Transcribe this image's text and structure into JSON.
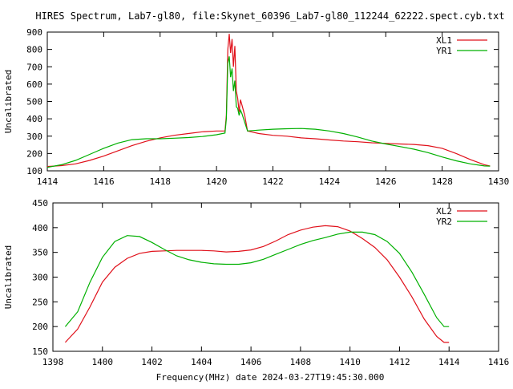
{
  "title": "HIRES Spectrum, Lab7-gl80, file:Skynet_60396_Lab7-gl80_112244_62222.spect.cyb.txt",
  "footer": "Frequency(MHz) date 2024-03-27T19:45:30.000",
  "chart_data": [
    {
      "type": "line",
      "ylabel": "Uncalibrated",
      "xlim": [
        1414,
        1430
      ],
      "ylim": [
        100,
        900
      ],
      "xticks": [
        1414,
        1416,
        1418,
        1420,
        1422,
        1424,
        1426,
        1428,
        1430
      ],
      "yticks": [
        100,
        200,
        300,
        400,
        500,
        600,
        700,
        800,
        900
      ],
      "grid": false,
      "legend_position": "top-right",
      "series": [
        {
          "name": "XL1",
          "color": "#e0101a",
          "points": [
            [
              1414.0,
              125
            ],
            [
              1414.5,
              130
            ],
            [
              1415.0,
              140
            ],
            [
              1415.5,
              160
            ],
            [
              1416.0,
              185
            ],
            [
              1416.5,
              215
            ],
            [
              1417.0,
              245
            ],
            [
              1417.5,
              270
            ],
            [
              1418.0,
              290
            ],
            [
              1418.5,
              305
            ],
            [
              1419.0,
              315
            ],
            [
              1419.5,
              325
            ],
            [
              1420.0,
              330
            ],
            [
              1420.3,
              330
            ],
            [
              1420.35,
              420
            ],
            [
              1420.4,
              800
            ],
            [
              1420.45,
              890
            ],
            [
              1420.5,
              780
            ],
            [
              1420.55,
              860
            ],
            [
              1420.6,
              700
            ],
            [
              1420.65,
              820
            ],
            [
              1420.7,
              560
            ],
            [
              1420.75,
              520
            ],
            [
              1420.8,
              440
            ],
            [
              1420.85,
              510
            ],
            [
              1420.9,
              480
            ],
            [
              1421.0,
              420
            ],
            [
              1421.1,
              330
            ],
            [
              1421.5,
              315
            ],
            [
              1422.0,
              305
            ],
            [
              1422.5,
              300
            ],
            [
              1423.0,
              290
            ],
            [
              1423.5,
              285
            ],
            [
              1424.0,
              278
            ],
            [
              1424.5,
              272
            ],
            [
              1425.0,
              268
            ],
            [
              1425.5,
              262
            ],
            [
              1426.0,
              258
            ],
            [
              1426.5,
              255
            ],
            [
              1427.0,
              252
            ],
            [
              1427.5,
              245
            ],
            [
              1428.0,
              230
            ],
            [
              1428.5,
              200
            ],
            [
              1429.0,
              165
            ],
            [
              1429.5,
              135
            ],
            [
              1429.7,
              128
            ]
          ]
        },
        {
          "name": "YR1",
          "color": "#00b000",
          "points": [
            [
              1414.0,
              120
            ],
            [
              1414.5,
              135
            ],
            [
              1415.0,
              160
            ],
            [
              1415.5,
              195
            ],
            [
              1416.0,
              230
            ],
            [
              1416.5,
              260
            ],
            [
              1417.0,
              280
            ],
            [
              1417.5,
              285
            ],
            [
              1418.0,
              285
            ],
            [
              1418.5,
              288
            ],
            [
              1419.0,
              292
            ],
            [
              1419.5,
              298
            ],
            [
              1420.0,
              308
            ],
            [
              1420.3,
              318
            ],
            [
              1420.35,
              400
            ],
            [
              1420.4,
              720
            ],
            [
              1420.45,
              760
            ],
            [
              1420.5,
              640
            ],
            [
              1420.55,
              690
            ],
            [
              1420.6,
              560
            ],
            [
              1420.65,
              620
            ],
            [
              1420.7,
              470
            ],
            [
              1420.75,
              460
            ],
            [
              1420.8,
              420
            ],
            [
              1420.85,
              450
            ],
            [
              1420.9,
              430
            ],
            [
              1421.0,
              380
            ],
            [
              1421.1,
              330
            ],
            [
              1421.5,
              335
            ],
            [
              1422.0,
              340
            ],
            [
              1422.5,
              343
            ],
            [
              1423.0,
              344
            ],
            [
              1423.5,
              340
            ],
            [
              1424.0,
              330
            ],
            [
              1424.5,
              315
            ],
            [
              1425.0,
              295
            ],
            [
              1425.5,
              272
            ],
            [
              1426.0,
              255
            ],
            [
              1426.5,
              240
            ],
            [
              1427.0,
              225
            ],
            [
              1427.5,
              205
            ],
            [
              1428.0,
              180
            ],
            [
              1428.5,
              158
            ],
            [
              1429.0,
              140
            ],
            [
              1429.5,
              128
            ],
            [
              1429.7,
              127
            ]
          ]
        }
      ]
    },
    {
      "type": "line",
      "ylabel": "Uncalibrated",
      "xlim": [
        1398,
        1416
      ],
      "ylim": [
        150,
        450
      ],
      "xticks": [
        1398,
        1400,
        1402,
        1404,
        1406,
        1408,
        1410,
        1412,
        1414,
        1416
      ],
      "yticks": [
        150,
        200,
        250,
        300,
        350,
        400,
        450
      ],
      "grid": false,
      "legend_position": "top-right",
      "series": [
        {
          "name": "XL2",
          "color": "#e0101a",
          "points": [
            [
              1398.5,
              168
            ],
            [
              1399.0,
              195
            ],
            [
              1399.5,
              240
            ],
            [
              1400.0,
              290
            ],
            [
              1400.5,
              320
            ],
            [
              1401.0,
              338
            ],
            [
              1401.5,
              348
            ],
            [
              1402.0,
              352
            ],
            [
              1402.5,
              353
            ],
            [
              1403.0,
              354
            ],
            [
              1403.5,
              354
            ],
            [
              1404.0,
              354
            ],
            [
              1404.5,
              353
            ],
            [
              1405.0,
              351
            ],
            [
              1405.5,
              352
            ],
            [
              1406.0,
              355
            ],
            [
              1406.5,
              362
            ],
            [
              1407.0,
              373
            ],
            [
              1407.5,
              386
            ],
            [
              1408.0,
              395
            ],
            [
              1408.5,
              401
            ],
            [
              1409.0,
              404
            ],
            [
              1409.5,
              402
            ],
            [
              1410.0,
              393
            ],
            [
              1410.5,
              378
            ],
            [
              1411.0,
              360
            ],
            [
              1411.5,
              335
            ],
            [
              1412.0,
              300
            ],
            [
              1412.5,
              260
            ],
            [
              1413.0,
              215
            ],
            [
              1413.5,
              180
            ],
            [
              1413.8,
              168
            ],
            [
              1414.0,
              168
            ]
          ]
        },
        {
          "name": "YR2",
          "color": "#00b000",
          "points": [
            [
              1398.5,
              200
            ],
            [
              1399.0,
              230
            ],
            [
              1399.5,
              290
            ],
            [
              1400.0,
              340
            ],
            [
              1400.5,
              372
            ],
            [
              1401.0,
              384
            ],
            [
              1401.5,
              382
            ],
            [
              1402.0,
              370
            ],
            [
              1402.5,
              356
            ],
            [
              1403.0,
              343
            ],
            [
              1403.5,
              335
            ],
            [
              1404.0,
              330
            ],
            [
              1404.5,
              327
            ],
            [
              1405.0,
              326
            ],
            [
              1405.5,
              326
            ],
            [
              1406.0,
              329
            ],
            [
              1406.5,
              336
            ],
            [
              1407.0,
              346
            ],
            [
              1407.5,
              356
            ],
            [
              1408.0,
              366
            ],
            [
              1408.5,
              374
            ],
            [
              1409.0,
              380
            ],
            [
              1409.5,
              387
            ],
            [
              1410.0,
              391
            ],
            [
              1410.5,
              391
            ],
            [
              1411.0,
              386
            ],
            [
              1411.5,
              372
            ],
            [
              1412.0,
              348
            ],
            [
              1412.5,
              310
            ],
            [
              1413.0,
              265
            ],
            [
              1413.5,
              218
            ],
            [
              1413.8,
              200
            ],
            [
              1414.0,
              200
            ]
          ]
        }
      ]
    }
  ]
}
